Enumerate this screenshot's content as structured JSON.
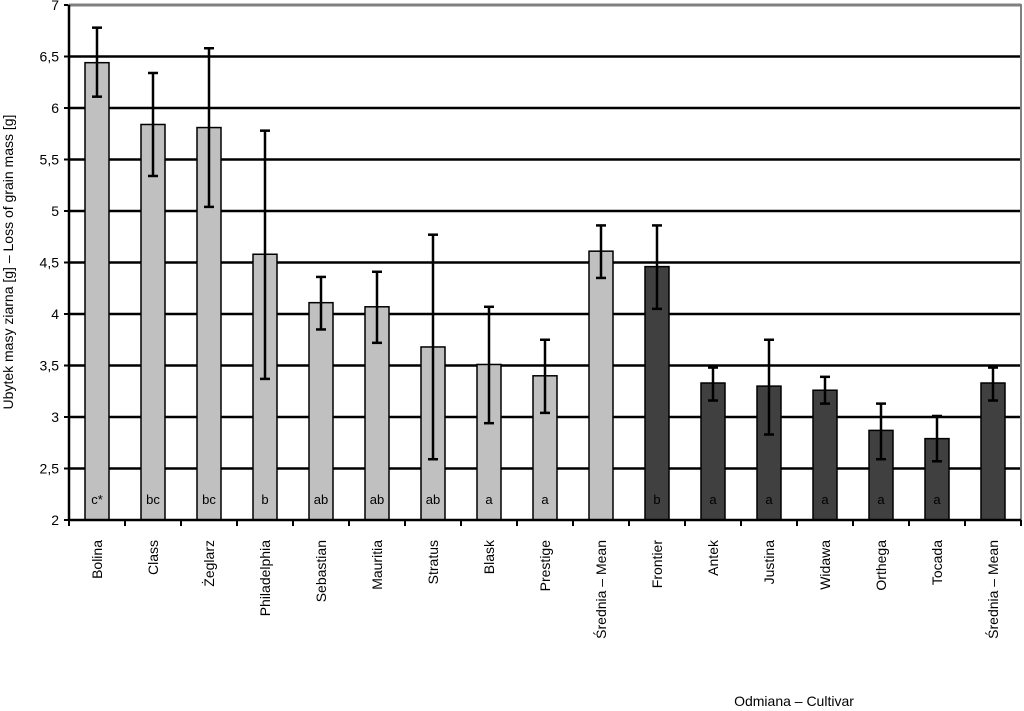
{
  "chart_data": {
    "type": "bar",
    "ylabel": "Ubytek masy ziarna [g]  – Loss of grain mass [g]",
    "xlabel": "Odmiana  – Cultivar",
    "ylim": [
      2,
      7
    ],
    "yticks": [
      "2",
      "2,5",
      "3",
      "3,5",
      "4",
      "4,5",
      "5",
      "5,5",
      "6",
      "6,5",
      "7"
    ],
    "grid": true,
    "colors": {
      "light": "#c0c0c0",
      "dark": "#404040",
      "grid": "#000000"
    },
    "categories": [
      "Bolina",
      "Class",
      "Żeglarz",
      "Philadelphia",
      "Sebastian",
      "Mauritia",
      "Stratus",
      "Blask",
      "Prestige",
      "Średnia – Mean",
      "Frontier",
      "Antek",
      "Justina",
      "Widawa",
      "Orthega",
      "Tocada",
      "Średnia – Mean"
    ],
    "values": [
      6.44,
      5.84,
      5.81,
      4.58,
      4.11,
      4.07,
      3.68,
      3.51,
      3.4,
      4.61,
      4.46,
      3.33,
      3.3,
      3.26,
      2.87,
      2.79,
      3.33
    ],
    "err_low": [
      6.11,
      5.34,
      5.04,
      3.37,
      3.85,
      3.72,
      2.59,
      2.94,
      3.04,
      4.35,
      4.05,
      3.16,
      2.83,
      3.13,
      2.59,
      2.57,
      3.16
    ],
    "err_high": [
      6.78,
      6.34,
      6.58,
      5.78,
      4.36,
      4.41,
      4.77,
      4.07,
      3.75,
      4.86,
      4.86,
      3.48,
      3.75,
      3.39,
      3.13,
      3.01,
      3.48
    ],
    "group": [
      "light",
      "light",
      "light",
      "light",
      "light",
      "light",
      "light",
      "light",
      "light",
      "light",
      "dark",
      "dark",
      "dark",
      "dark",
      "dark",
      "dark",
      "dark"
    ],
    "bar_labels": [
      "c*",
      "bc",
      "bc",
      "b",
      "ab",
      "ab",
      "ab",
      "a",
      "a",
      "",
      "b",
      "a",
      "a",
      "a",
      "a",
      "a",
      ""
    ]
  }
}
